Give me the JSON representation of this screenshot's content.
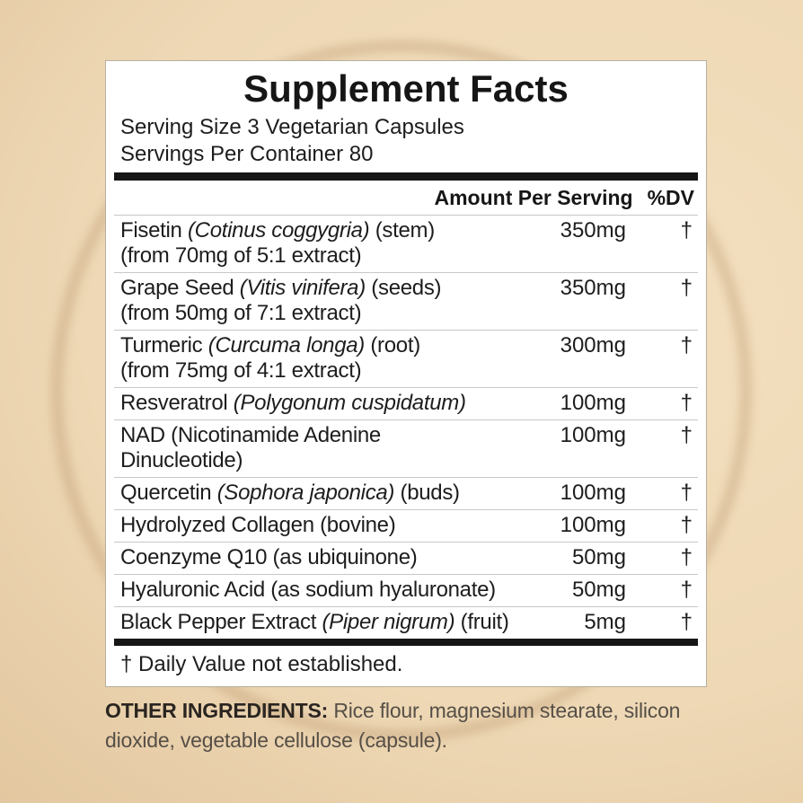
{
  "colors": {
    "background_center": "#f4e0c0",
    "background_mid": "#eed8b5",
    "background_edge": "#dcbd93",
    "ring_accent": "#b0895c",
    "panel_background": "#ffffff",
    "text_primary": "#1d1d1d",
    "text_muted": "#564f47",
    "divider_thin": "#c8c8c8",
    "divider_thick": "#161616"
  },
  "panel": {
    "title": "Supplement Facts",
    "serving_size": "Serving Size 3 Vegetarian Capsules",
    "servings_per_container": "Servings Per Container 80",
    "columns": {
      "amount_header": "Amount Per Serving",
      "dv_header": "%DV"
    },
    "rows": [
      {
        "pre": "Fisetin ",
        "italic": "(Cotinus coggygria)",
        "post": " (stem)",
        "line2": "(from 70mg of 5:1 extract)",
        "amount": "350mg",
        "dv": "†"
      },
      {
        "pre": "Grape Seed ",
        "italic": "(Vitis vinifera)",
        "post": " (seeds)",
        "line2": "(from 50mg of 7:1 extract)",
        "amount": "350mg",
        "dv": "†"
      },
      {
        "pre": "Turmeric ",
        "italic": "(Curcuma longa)",
        "post": " (root)",
        "line2": "(from 75mg of 4:1 extract)",
        "amount": "300mg",
        "dv": "†"
      },
      {
        "pre": "Resveratrol ",
        "italic": "(Polygonum cuspidatum)",
        "post": "",
        "amount": "100mg",
        "dv": "†"
      },
      {
        "pre": "NAD (Nicotinamide Adenine",
        "line2": "Dinucleotide)",
        "amount": "100mg",
        "dv": "†"
      },
      {
        "pre": "Quercetin ",
        "italic": "(Sophora japonica)",
        "post": " (buds)",
        "amount": "100mg",
        "dv": "†"
      },
      {
        "pre": "Hydrolyzed Collagen (bovine)",
        "amount": "100mg",
        "dv": "†"
      },
      {
        "pre": "Coenzyme Q10 (as ubiquinone)",
        "amount": "50mg",
        "dv": "†"
      },
      {
        "pre": "Hyaluronic Acid (as sodium hyaluronate)",
        "amount": "50mg",
        "dv": "†"
      },
      {
        "pre": "Black Pepper Extract ",
        "italic": "(Piper nigrum)",
        "post": " (fruit)",
        "amount": "5mg",
        "dv": "†"
      }
    ],
    "footnote": "† Daily Value not established."
  },
  "other_ingredients": {
    "label": "OTHER INGREDIENTS:",
    "text": " Rice flour, magnesium stearate, silicon dioxide, vegetable cellulose (capsule)."
  }
}
